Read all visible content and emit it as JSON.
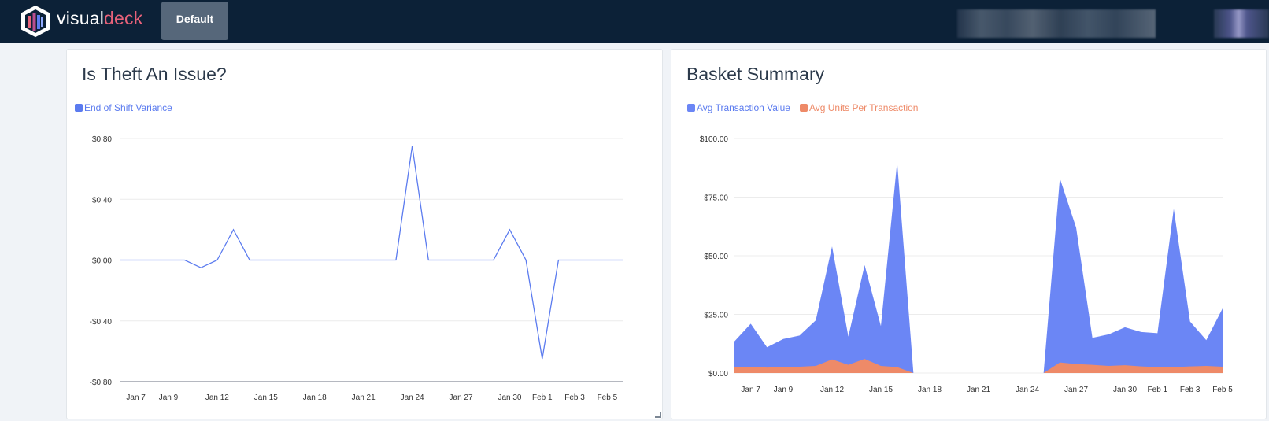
{
  "brand": {
    "part1": "visual",
    "part2": "deck"
  },
  "nav": {
    "active_tab": "Default"
  },
  "colors": {
    "topbar": "#0c2137",
    "brand_accent": "#e8627a",
    "series_blue": "#6b86f5",
    "series_orange": "#ee8a68",
    "line_blue": "#5b7bef"
  },
  "panels": {
    "theft": {
      "title": "Is Theft An Issue?"
    },
    "basket": {
      "title": "Basket Summary"
    }
  },
  "chart_data": [
    {
      "type": "line",
      "title": "Is Theft An Issue?",
      "series": [
        {
          "name": "End of Shift Variance",
          "values": [
            0,
            0,
            0,
            0,
            0,
            -0.05,
            0,
            0.2,
            0,
            0,
            0,
            0,
            0,
            0,
            0,
            0,
            0,
            0,
            0.75,
            0,
            0,
            0,
            0,
            0,
            0.2,
            0,
            -0.65,
            0,
            0,
            0,
            0,
            0
          ]
        }
      ],
      "ylim": [
        -0.8,
        0.8
      ],
      "yticks": [
        0.8,
        0.4,
        0,
        -0.4,
        -0.8
      ],
      "ytick_labels": [
        "$0.80",
        "$0.40",
        "$0.00",
        "-$0.40",
        "-$0.80"
      ],
      "xtick_labels": [
        "Jan 7",
        "Jan 9",
        "Jan 12",
        "Jan 15",
        "Jan 18",
        "Jan 21",
        "Jan 24",
        "Jan 27",
        "Jan 30",
        "Feb 1",
        "Feb 3",
        "Feb 5"
      ],
      "xtick_positions": [
        1,
        3,
        6,
        9,
        12,
        15,
        18,
        21,
        24,
        26,
        28,
        30
      ],
      "legend": "top-left"
    },
    {
      "type": "area",
      "title": "Basket Summary",
      "series": [
        {
          "name": "Avg Transaction Value",
          "values": [
            13.5,
            21,
            11,
            14.5,
            16,
            22.5,
            54,
            15.5,
            46,
            20,
            90,
            0,
            0,
            0,
            0,
            0,
            0,
            0,
            0,
            0,
            83,
            62,
            15,
            16.5,
            19.5,
            17.5,
            17,
            70,
            22,
            14,
            27.5
          ]
        },
        {
          "name": "Avg Units Per Transaction",
          "values": [
            2.5,
            2.7,
            2.3,
            2.5,
            2.7,
            3,
            5.8,
            3.5,
            6,
            3,
            2.5,
            0,
            0,
            0,
            0,
            0,
            0,
            0,
            0,
            0,
            4.5,
            3.8,
            3.5,
            3,
            3.3,
            2.8,
            2.5,
            2.5,
            2.8,
            3,
            2.7
          ]
        }
      ],
      "ylim": [
        0,
        100
      ],
      "yticks": [
        100,
        75,
        50,
        25,
        0
      ],
      "ytick_labels": [
        "$100.00",
        "$75.00",
        "$50.00",
        "$25.00",
        "$0.00"
      ],
      "xtick_labels": [
        "Jan 7",
        "Jan 9",
        "Jan 12",
        "Jan 15",
        "Jan 18",
        "Jan 21",
        "Jan 24",
        "Jan 27",
        "Jan 30",
        "Feb 1",
        "Feb 3",
        "Feb 5"
      ],
      "xtick_positions": [
        1,
        3,
        6,
        9,
        12,
        15,
        18,
        21,
        24,
        26,
        28,
        30
      ],
      "legend": "top-left"
    }
  ]
}
